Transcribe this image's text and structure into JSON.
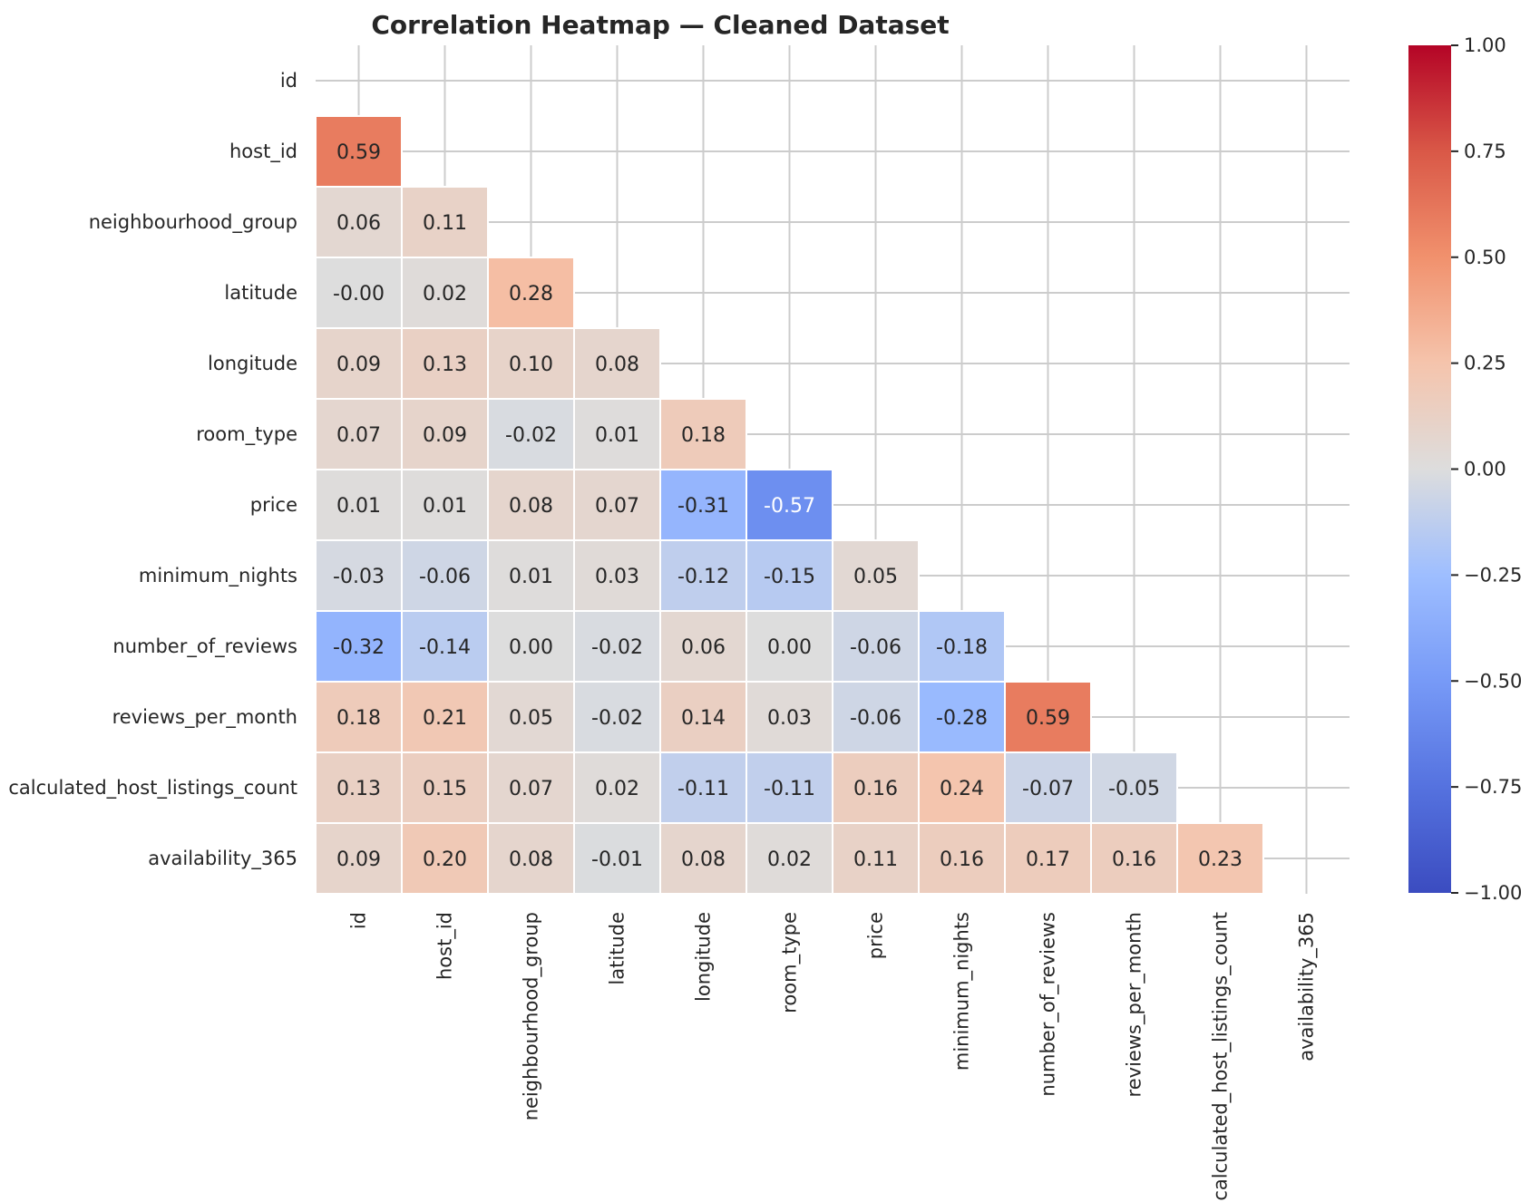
{
  "chart_data": {
    "type": "heatmap",
    "title": "Correlation Heatmap — Cleaned Dataset",
    "labels": [
      "id",
      "host_id",
      "neighbourhood_group",
      "latitude",
      "longitude",
      "room_type",
      "price",
      "minimum_nights",
      "number_of_reviews",
      "reviews_per_month",
      "calculated_host_listings_count",
      "availability_365"
    ],
    "cells": [
      {
        "row": "host_id",
        "col": "id",
        "value": 0.59,
        "label": "0.59"
      },
      {
        "row": "neighbourhood_group",
        "col": "id",
        "value": 0.06,
        "label": "0.06"
      },
      {
        "row": "neighbourhood_group",
        "col": "host_id",
        "value": 0.11,
        "label": "0.11"
      },
      {
        "row": "latitude",
        "col": "id",
        "value": -0.0,
        "label": "-0.00"
      },
      {
        "row": "latitude",
        "col": "host_id",
        "value": 0.02,
        "label": "0.02"
      },
      {
        "row": "latitude",
        "col": "neighbourhood_group",
        "value": 0.28,
        "label": "0.28"
      },
      {
        "row": "longitude",
        "col": "id",
        "value": 0.09,
        "label": "0.09"
      },
      {
        "row": "longitude",
        "col": "host_id",
        "value": 0.13,
        "label": "0.13"
      },
      {
        "row": "longitude",
        "col": "neighbourhood_group",
        "value": 0.1,
        "label": "0.10"
      },
      {
        "row": "longitude",
        "col": "latitude",
        "value": 0.08,
        "label": "0.08"
      },
      {
        "row": "room_type",
        "col": "id",
        "value": 0.07,
        "label": "0.07"
      },
      {
        "row": "room_type",
        "col": "host_id",
        "value": 0.09,
        "label": "0.09"
      },
      {
        "row": "room_type",
        "col": "neighbourhood_group",
        "value": -0.02,
        "label": "-0.02"
      },
      {
        "row": "room_type",
        "col": "latitude",
        "value": 0.01,
        "label": "0.01"
      },
      {
        "row": "room_type",
        "col": "longitude",
        "value": 0.18,
        "label": "0.18"
      },
      {
        "row": "price",
        "col": "id",
        "value": 0.01,
        "label": "0.01"
      },
      {
        "row": "price",
        "col": "host_id",
        "value": 0.01,
        "label": "0.01"
      },
      {
        "row": "price",
        "col": "neighbourhood_group",
        "value": 0.08,
        "label": "0.08"
      },
      {
        "row": "price",
        "col": "latitude",
        "value": 0.07,
        "label": "0.07"
      },
      {
        "row": "price",
        "col": "longitude",
        "value": -0.31,
        "label": "-0.31"
      },
      {
        "row": "price",
        "col": "room_type",
        "value": -0.57,
        "label": "-0.57"
      },
      {
        "row": "minimum_nights",
        "col": "id",
        "value": -0.03,
        "label": "-0.03"
      },
      {
        "row": "minimum_nights",
        "col": "host_id",
        "value": -0.06,
        "label": "-0.06"
      },
      {
        "row": "minimum_nights",
        "col": "neighbourhood_group",
        "value": 0.01,
        "label": "0.01"
      },
      {
        "row": "minimum_nights",
        "col": "latitude",
        "value": 0.03,
        "label": "0.03"
      },
      {
        "row": "minimum_nights",
        "col": "longitude",
        "value": -0.12,
        "label": "-0.12"
      },
      {
        "row": "minimum_nights",
        "col": "room_type",
        "value": -0.15,
        "label": "-0.15"
      },
      {
        "row": "minimum_nights",
        "col": "price",
        "value": 0.05,
        "label": "0.05"
      },
      {
        "row": "number_of_reviews",
        "col": "id",
        "value": -0.32,
        "label": "-0.32"
      },
      {
        "row": "number_of_reviews",
        "col": "host_id",
        "value": -0.14,
        "label": "-0.14"
      },
      {
        "row": "number_of_reviews",
        "col": "neighbourhood_group",
        "value": 0.0,
        "label": "0.00"
      },
      {
        "row": "number_of_reviews",
        "col": "latitude",
        "value": -0.02,
        "label": "-0.02"
      },
      {
        "row": "number_of_reviews",
        "col": "longitude",
        "value": 0.06,
        "label": "0.06"
      },
      {
        "row": "number_of_reviews",
        "col": "room_type",
        "value": 0.0,
        "label": "0.00"
      },
      {
        "row": "number_of_reviews",
        "col": "price",
        "value": -0.06,
        "label": "-0.06"
      },
      {
        "row": "number_of_reviews",
        "col": "minimum_nights",
        "value": -0.18,
        "label": "-0.18"
      },
      {
        "row": "reviews_per_month",
        "col": "id",
        "value": 0.18,
        "label": "0.18"
      },
      {
        "row": "reviews_per_month",
        "col": "host_id",
        "value": 0.21,
        "label": "0.21"
      },
      {
        "row": "reviews_per_month",
        "col": "neighbourhood_group",
        "value": 0.05,
        "label": "0.05"
      },
      {
        "row": "reviews_per_month",
        "col": "latitude",
        "value": -0.02,
        "label": "-0.02"
      },
      {
        "row": "reviews_per_month",
        "col": "longitude",
        "value": 0.14,
        "label": "0.14"
      },
      {
        "row": "reviews_per_month",
        "col": "room_type",
        "value": 0.03,
        "label": "0.03"
      },
      {
        "row": "reviews_per_month",
        "col": "price",
        "value": -0.06,
        "label": "-0.06"
      },
      {
        "row": "reviews_per_month",
        "col": "minimum_nights",
        "value": -0.28,
        "label": "-0.28"
      },
      {
        "row": "reviews_per_month",
        "col": "number_of_reviews",
        "value": 0.59,
        "label": "0.59"
      },
      {
        "row": "calculated_host_listings_count",
        "col": "id",
        "value": 0.13,
        "label": "0.13"
      },
      {
        "row": "calculated_host_listings_count",
        "col": "host_id",
        "value": 0.15,
        "label": "0.15"
      },
      {
        "row": "calculated_host_listings_count",
        "col": "neighbourhood_group",
        "value": 0.07,
        "label": "0.07"
      },
      {
        "row": "calculated_host_listings_count",
        "col": "latitude",
        "value": 0.02,
        "label": "0.02"
      },
      {
        "row": "calculated_host_listings_count",
        "col": "longitude",
        "value": -0.11,
        "label": "-0.11"
      },
      {
        "row": "calculated_host_listings_count",
        "col": "room_type",
        "value": -0.11,
        "label": "-0.11"
      },
      {
        "row": "calculated_host_listings_count",
        "col": "price",
        "value": 0.16,
        "label": "0.16"
      },
      {
        "row": "calculated_host_listings_count",
        "col": "minimum_nights",
        "value": 0.24,
        "label": "0.24"
      },
      {
        "row": "calculated_host_listings_count",
        "col": "number_of_reviews",
        "value": -0.07,
        "label": "-0.07"
      },
      {
        "row": "calculated_host_listings_count",
        "col": "reviews_per_month",
        "value": -0.05,
        "label": "-0.05"
      },
      {
        "row": "availability_365",
        "col": "id",
        "value": 0.09,
        "label": "0.09"
      },
      {
        "row": "availability_365",
        "col": "host_id",
        "value": 0.2,
        "label": "0.20"
      },
      {
        "row": "availability_365",
        "col": "neighbourhood_group",
        "value": 0.08,
        "label": "0.08"
      },
      {
        "row": "availability_365",
        "col": "latitude",
        "value": -0.01,
        "label": "-0.01"
      },
      {
        "row": "availability_365",
        "col": "longitude",
        "value": 0.08,
        "label": "0.08"
      },
      {
        "row": "availability_365",
        "col": "room_type",
        "value": 0.02,
        "label": "0.02"
      },
      {
        "row": "availability_365",
        "col": "price",
        "value": 0.11,
        "label": "0.11"
      },
      {
        "row": "availability_365",
        "col": "minimum_nights",
        "value": 0.16,
        "label": "0.16"
      },
      {
        "row": "availability_365",
        "col": "number_of_reviews",
        "value": 0.17,
        "label": "0.17"
      },
      {
        "row": "availability_365",
        "col": "reviews_per_month",
        "value": 0.16,
        "label": "0.16"
      },
      {
        "row": "availability_365",
        "col": "calculated_host_listings_count",
        "value": 0.23,
        "label": "0.23"
      }
    ],
    "colorbar": {
      "colormap": "coolwarm",
      "vmin": -1.0,
      "vmax": 1.0,
      "ticks": [
        1.0,
        0.75,
        0.5,
        0.25,
        0.0,
        -0.25,
        -0.5,
        -0.75,
        -1.0
      ],
      "tick_labels": [
        "1.00",
        "0.75",
        "0.50",
        "0.25",
        "0.00",
        "−0.25",
        "−0.50",
        "−0.75",
        "−1.00"
      ]
    },
    "mask": "upper-triangle-including-diagonal",
    "grid": true,
    "colors": {
      "negative_end": "#3b4cc0",
      "middle": "#dddddd",
      "positive_end": "#b40426",
      "grid": "#cccccc",
      "text": "#262626"
    }
  }
}
